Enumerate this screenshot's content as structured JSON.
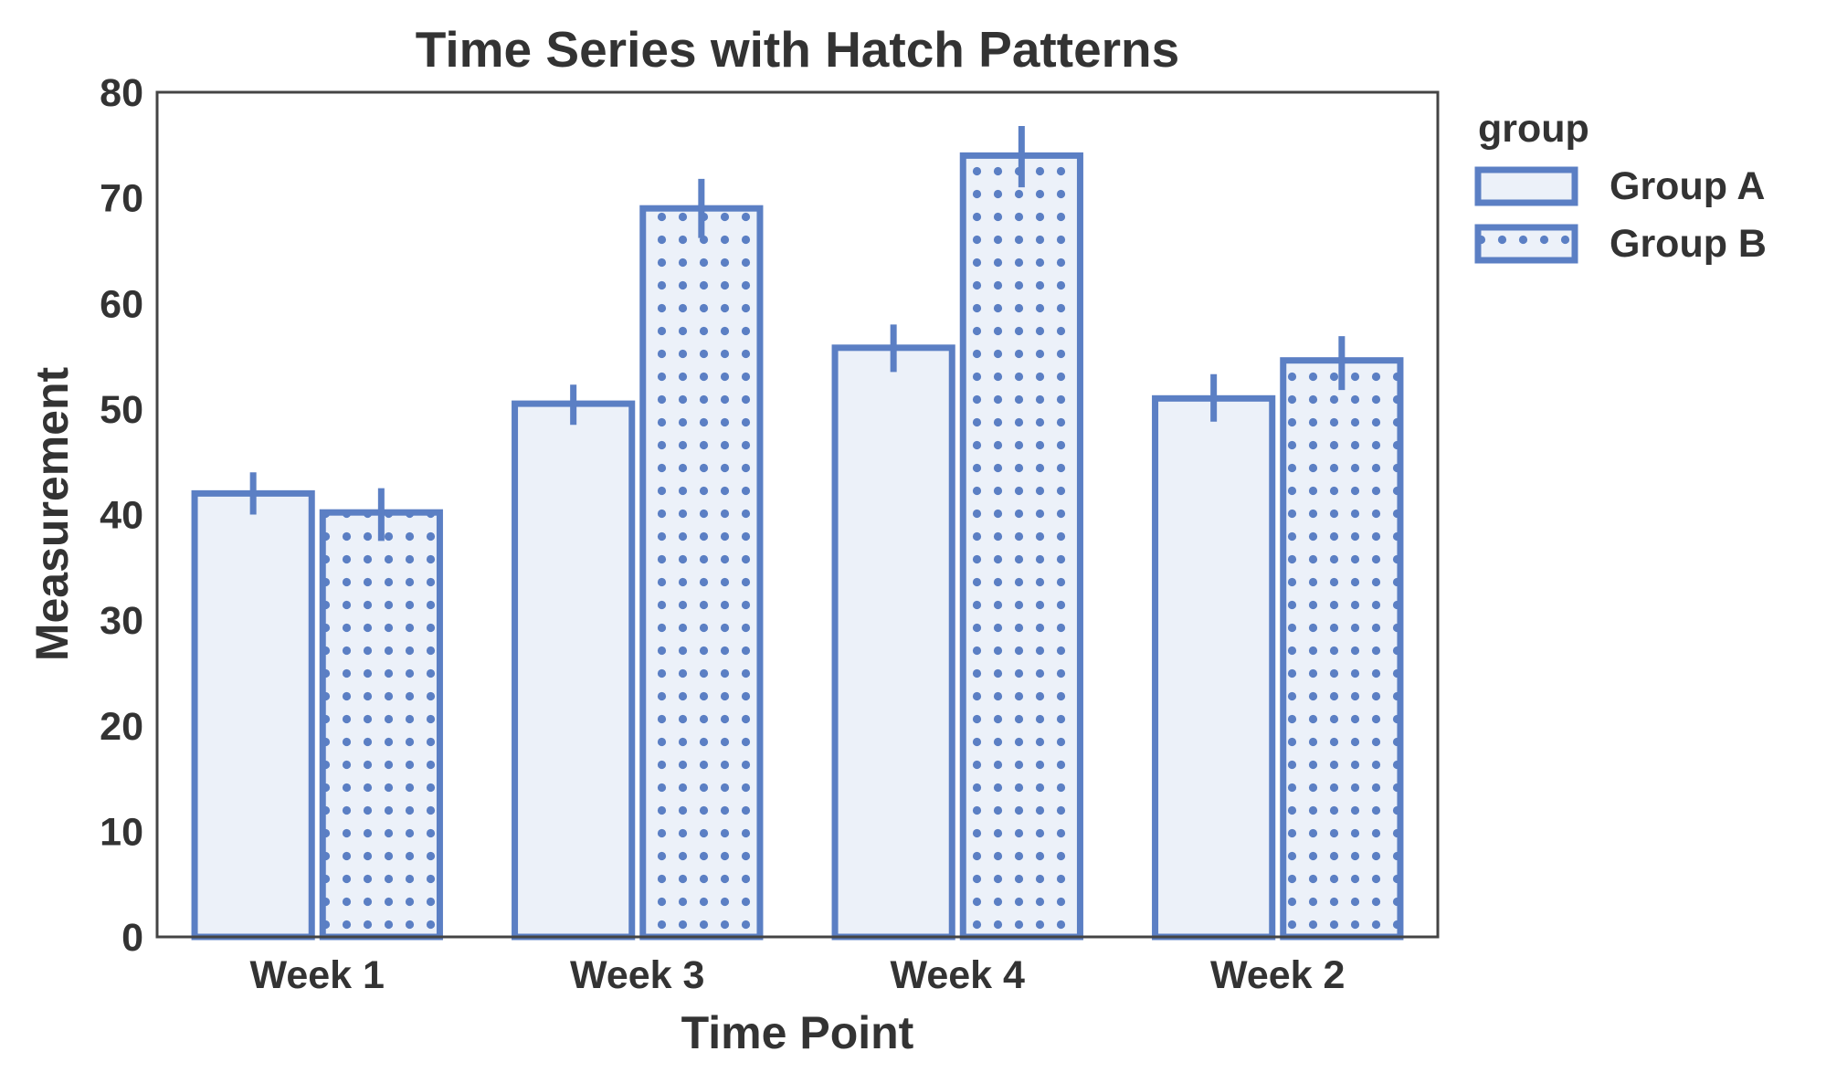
{
  "chart_data": {
    "type": "bar",
    "title": "Time Series with Hatch Patterns",
    "xlabel": "Time Point",
    "ylabel": "Measurement",
    "categories": [
      "Week 1",
      "Week 3",
      "Week 4",
      "Week 2"
    ],
    "ylim": [
      0,
      80
    ],
    "yticks": [
      0,
      10,
      20,
      30,
      40,
      50,
      60,
      70,
      80
    ],
    "grid": false,
    "legend": {
      "title": "group",
      "placement": "outside-top-right"
    },
    "series": [
      {
        "name": "Group A",
        "hatch": "none",
        "values": [
          42,
          50.5,
          55.8,
          51
        ],
        "error": [
          [
            40,
            44
          ],
          [
            48.5,
            52.3
          ],
          [
            53.5,
            58
          ],
          [
            48.8,
            53.3
          ]
        ]
      },
      {
        "name": "Group B",
        "hatch": "dots",
        "values": [
          40.2,
          69,
          74,
          54.6
        ],
        "error": [
          [
            37.5,
            42.5
          ],
          [
            66.2,
            71.8
          ],
          [
            71,
            76.8
          ],
          [
            51.8,
            56.9
          ]
        ]
      }
    ],
    "colors": {
      "edge": "#5b7fc4",
      "fill": "#ecf1f9",
      "axis": "#444444",
      "text": "#333333"
    }
  }
}
